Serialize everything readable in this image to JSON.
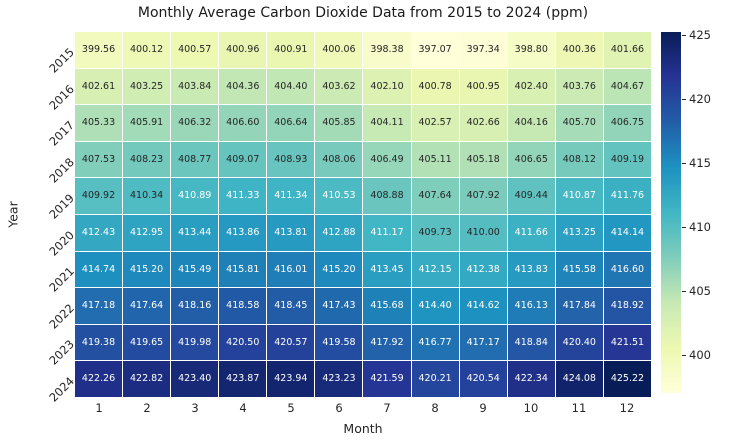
{
  "chart_data": {
    "type": "heatmap",
    "title": "Monthly Average Carbon Dioxide Data from 2015 to 2024 (ppm)",
    "xlabel": "Month",
    "ylabel": "Year",
    "x_labels": [
      "1",
      "2",
      "3",
      "4",
      "5",
      "6",
      "7",
      "8",
      "9",
      "10",
      "11",
      "12"
    ],
    "y_labels": [
      "2015",
      "2016",
      "2017",
      "2018",
      "2019",
      "2020",
      "2021",
      "2022",
      "2023",
      "2024"
    ],
    "values": [
      [
        399.56,
        400.12,
        400.57,
        400.96,
        400.91,
        400.06,
        398.38,
        397.07,
        397.34,
        398.8,
        400.36,
        401.66
      ],
      [
        402.61,
        403.25,
        403.84,
        404.36,
        404.4,
        403.62,
        402.1,
        400.78,
        400.95,
        402.4,
        403.76,
        404.67
      ],
      [
        405.33,
        405.91,
        406.32,
        406.6,
        406.64,
        405.85,
        404.11,
        402.57,
        402.66,
        404.16,
        405.7,
        406.75
      ],
      [
        407.53,
        408.23,
        408.77,
        409.07,
        408.93,
        408.06,
        406.49,
        405.11,
        405.18,
        406.65,
        408.12,
        409.19
      ],
      [
        409.92,
        410.34,
        410.89,
        411.33,
        411.34,
        410.53,
        408.88,
        407.64,
        407.92,
        409.44,
        410.87,
        411.76
      ],
      [
        412.43,
        412.95,
        413.44,
        413.86,
        413.81,
        412.88,
        411.17,
        409.73,
        410.0,
        411.66,
        413.25,
        414.14
      ],
      [
        414.74,
        415.2,
        415.49,
        415.81,
        416.01,
        415.2,
        413.45,
        412.15,
        412.38,
        413.83,
        415.58,
        416.6
      ],
      [
        417.18,
        417.64,
        418.16,
        418.58,
        418.45,
        417.43,
        415.68,
        414.4,
        414.62,
        416.13,
        417.84,
        418.92
      ],
      [
        419.38,
        419.65,
        419.98,
        420.5,
        420.57,
        419.58,
        417.92,
        416.77,
        417.17,
        418.84,
        420.4,
        421.51
      ],
      [
        422.26,
        422.82,
        423.4,
        423.87,
        423.94,
        423.23,
        421.59,
        420.21,
        420.54,
        422.34,
        424.08,
        425.22
      ]
    ],
    "value_decimals": 2,
    "vmin": 397.07,
    "vmax": 425.22,
    "colormap": {
      "name": "YlGnBu",
      "stops": [
        "#ffffd9",
        "#edf8b1",
        "#c7e9b4",
        "#7fcdbb",
        "#41b6c4",
        "#1d91c0",
        "#225ea8",
        "#253494",
        "#081d58"
      ]
    },
    "colorbar": {
      "position": "right",
      "ticks": [
        400,
        405,
        410,
        415,
        420,
        425
      ]
    },
    "annotation_text_colors": {
      "dark": "#262626",
      "light": "#ffffff"
    },
    "luminance_threshold": 0.408,
    "grid_line_color": "#ffffff",
    "background": "#ffffff"
  }
}
